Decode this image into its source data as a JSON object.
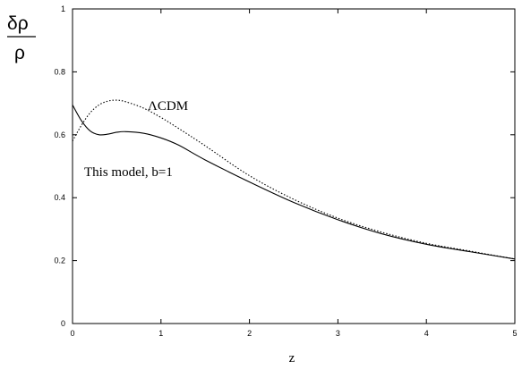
{
  "chart_data": {
    "type": "line",
    "xlabel": "z",
    "ylabel_numerator": "δρ",
    "ylabel_denominator": "ρ",
    "xlim": [
      0,
      5
    ],
    "ylim": [
      0,
      1
    ],
    "x_ticks": [
      "0",
      "1",
      "2",
      "3",
      "4",
      "5"
    ],
    "y_ticks": [
      "0",
      "0.2",
      "0.4",
      "0.6",
      "0.8",
      "1"
    ],
    "grid": false,
    "series": [
      {
        "name": "ΛCDM",
        "style": "dotted",
        "color": "#000000",
        "x": [
          0,
          0.1,
          0.2,
          0.3,
          0.4,
          0.5,
          0.6,
          0.8,
          1.0,
          1.2,
          1.5,
          2.0,
          2.5,
          3.0,
          3.5,
          4.0,
          4.5,
          5.0
        ],
        "y": [
          0.58,
          0.63,
          0.67,
          0.695,
          0.707,
          0.71,
          0.705,
          0.685,
          0.655,
          0.62,
          0.565,
          0.47,
          0.395,
          0.335,
          0.29,
          0.255,
          0.23,
          0.205
        ]
      },
      {
        "name": "This model, b=1",
        "style": "solid",
        "color": "#000000",
        "x": [
          0,
          0.1,
          0.2,
          0.3,
          0.4,
          0.5,
          0.6,
          0.8,
          1.0,
          1.2,
          1.5,
          2.0,
          2.5,
          3.0,
          3.5,
          4.0,
          4.5,
          5.0
        ],
        "y": [
          0.695,
          0.645,
          0.612,
          0.6,
          0.602,
          0.608,
          0.61,
          0.605,
          0.59,
          0.567,
          0.52,
          0.45,
          0.385,
          0.33,
          0.285,
          0.252,
          0.228,
          0.205
        ]
      }
    ]
  }
}
